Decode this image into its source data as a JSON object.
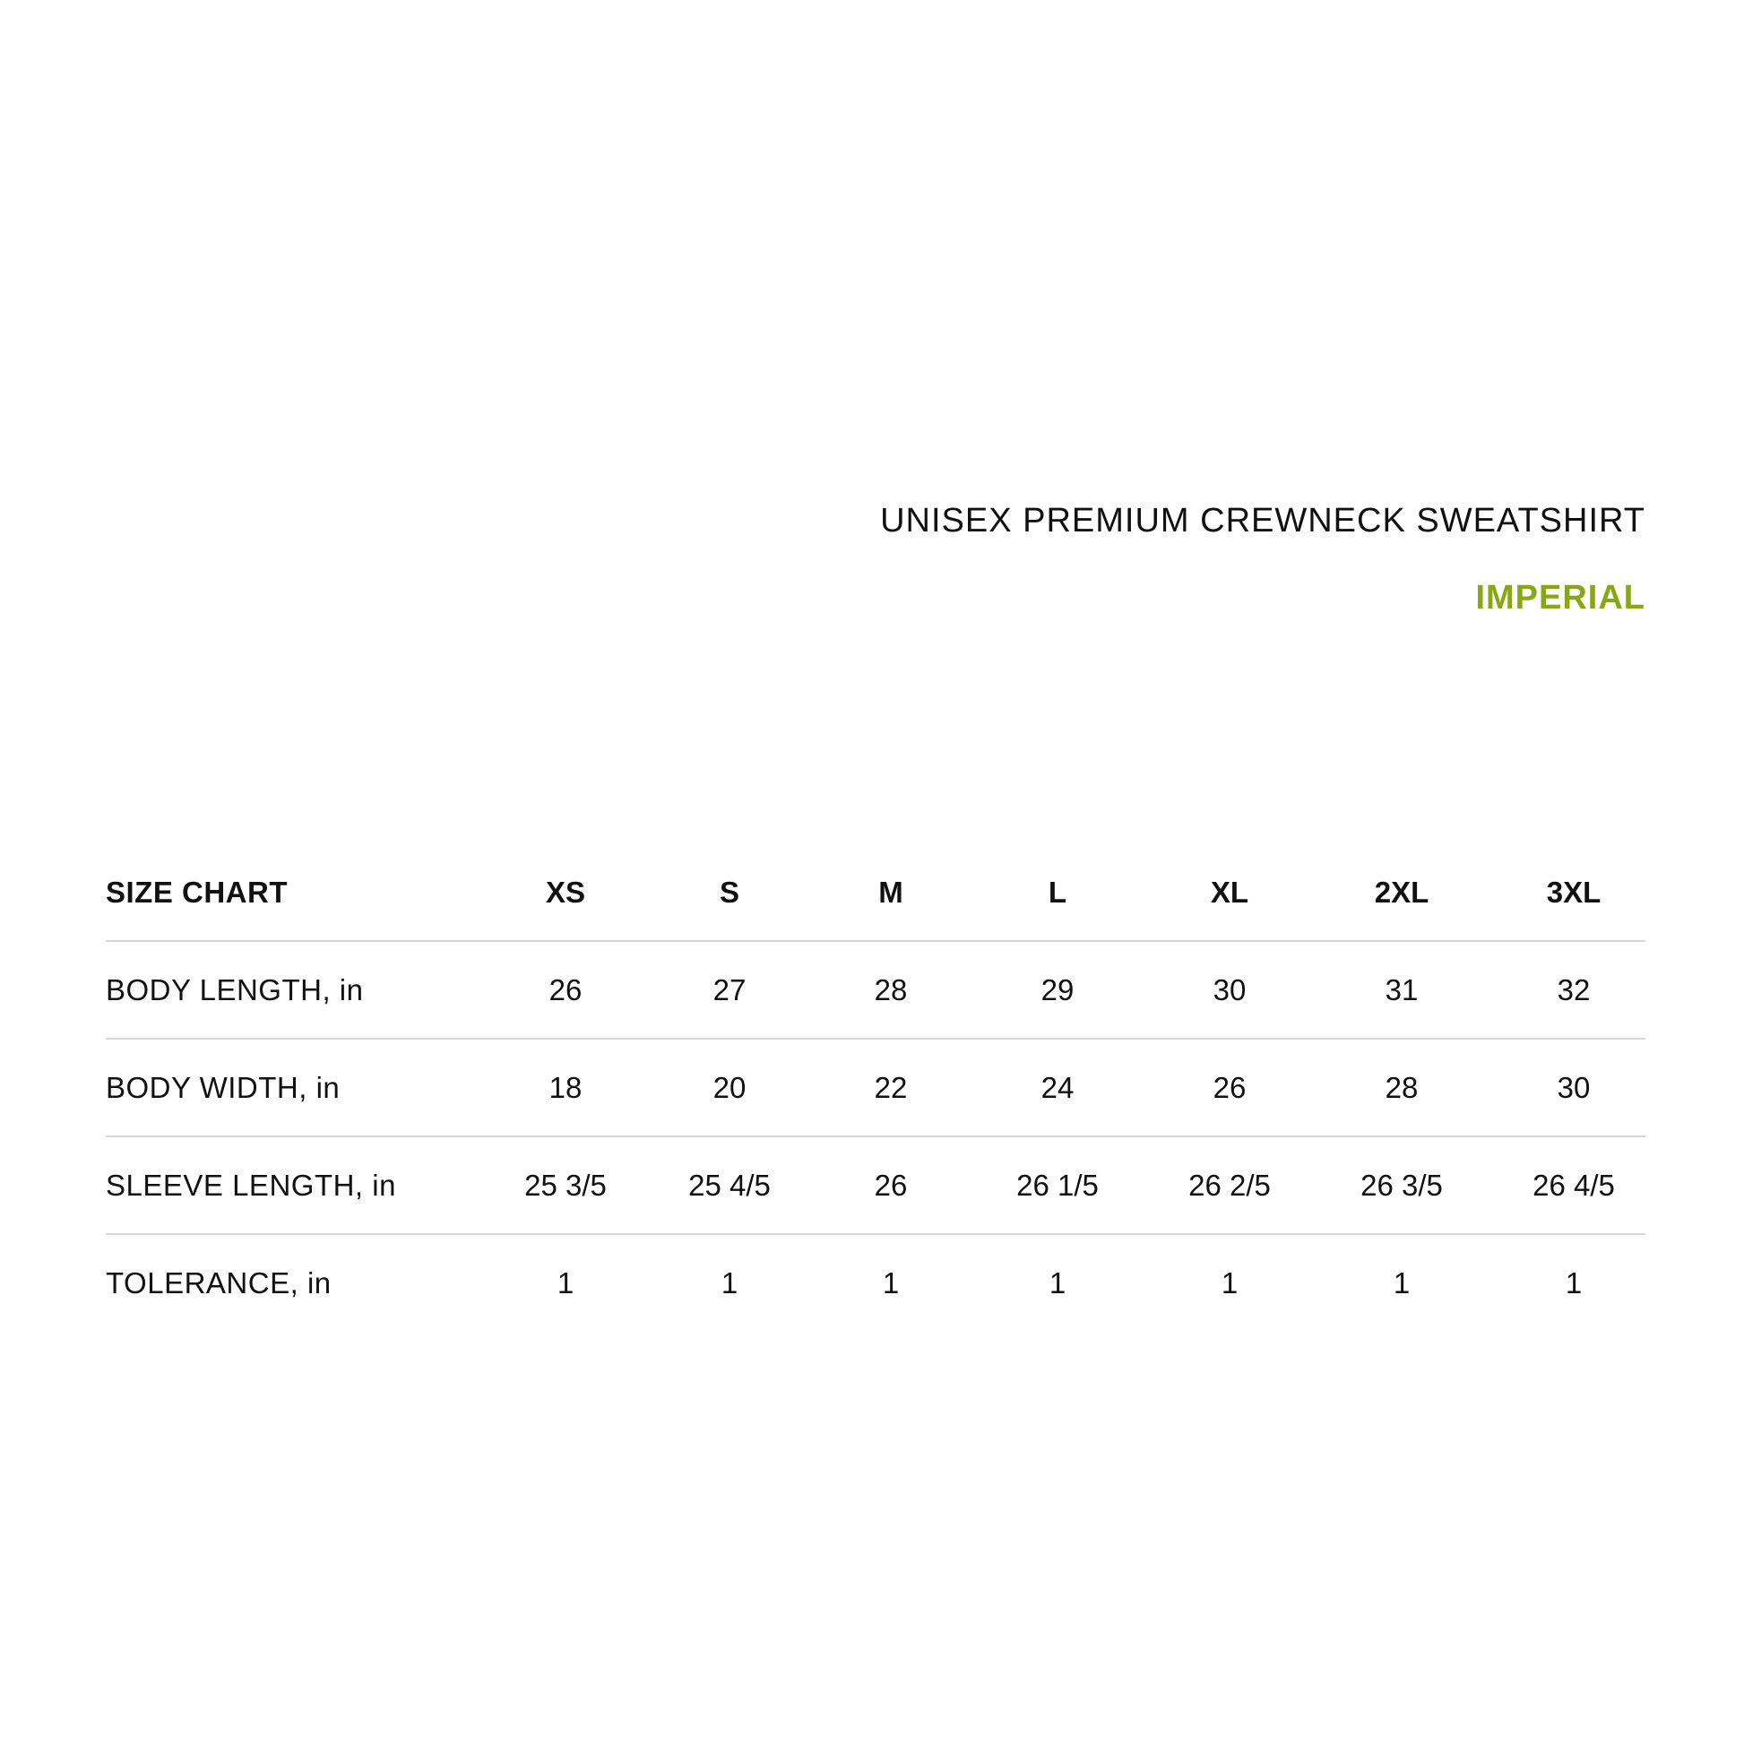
{
  "title": "UNISEX PREMIUM CREWNECK SWEATSHIRT",
  "unit_system": "IMPERIAL",
  "accent_color": "#86a812",
  "table": {
    "header": {
      "label": "SIZE CHART",
      "sizes": [
        "XS",
        "S",
        "M",
        "L",
        "XL",
        "2XL",
        "3XL"
      ]
    },
    "rows": [
      {
        "label": "BODY LENGTH, in",
        "values": [
          "26",
          "27",
          "28",
          "29",
          "30",
          "31",
          "32"
        ]
      },
      {
        "label": "BODY WIDTH, in",
        "values": [
          "18",
          "20",
          "22",
          "24",
          "26",
          "28",
          "30"
        ]
      },
      {
        "label": "SLEEVE LENGTH, in",
        "values": [
          "25 3/5",
          "25 4/5",
          "26",
          "26 1/5",
          "26 2/5",
          "26 3/5",
          "26 4/5"
        ]
      },
      {
        "label": "TOLERANCE, in",
        "values": [
          "1",
          "1",
          "1",
          "1",
          "1",
          "1",
          "1"
        ]
      }
    ]
  }
}
